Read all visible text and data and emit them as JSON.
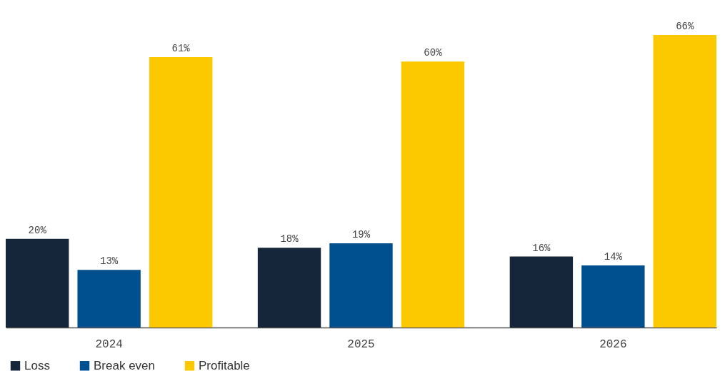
{
  "chart_data": {
    "type": "bar",
    "categories": [
      "2024",
      "2025",
      "2026"
    ],
    "series": [
      {
        "name": "Loss",
        "color": "#15253a",
        "values": [
          20,
          18,
          16
        ],
        "value_labels": [
          "20%",
          "18%",
          "16%"
        ]
      },
      {
        "name": "Break even",
        "color": "#00508f",
        "values": [
          13,
          19,
          14
        ],
        "value_labels": [
          "13%",
          "19%",
          "14%"
        ]
      },
      {
        "name": "Profitable",
        "color": "#fcc800",
        "values": [
          61,
          60,
          66
        ],
        "value_labels": [
          "61%",
          "60%",
          "66%"
        ]
      }
    ],
    "legend": "bottom left",
    "grid": false
  }
}
